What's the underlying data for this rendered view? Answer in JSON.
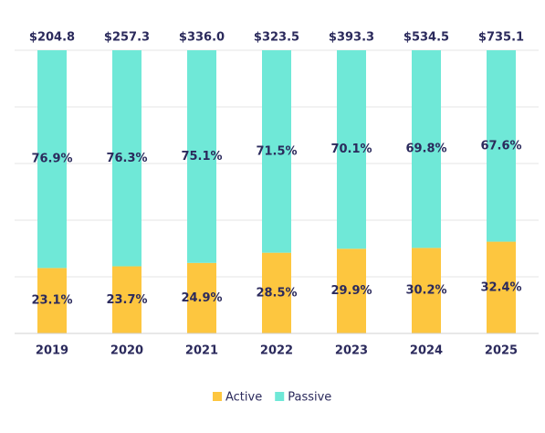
{
  "chart_data": {
    "type": "stacked_bar_percent",
    "categories": [
      "2019",
      "2020",
      "2021",
      "2022",
      "2023",
      "2024",
      "2025"
    ],
    "series": [
      {
        "name": "Active",
        "color": "#fdc63f",
        "values": [
          23.1,
          23.7,
          24.9,
          28.5,
          29.9,
          30.2,
          32.4
        ],
        "value_labels": [
          "23.1%",
          "23.7%",
          "24.9%",
          "28.5%",
          "29.9%",
          "30.2%",
          "32.4%"
        ]
      },
      {
        "name": "Passive",
        "color": "#6fe8d7",
        "values": [
          76.9,
          76.3,
          75.1,
          71.5,
          70.1,
          69.8,
          67.6
        ],
        "value_labels": [
          "76.9%",
          "76.3%",
          "75.1%",
          "71.5%",
          "70.1%",
          "69.8%",
          "67.6%"
        ]
      }
    ],
    "totals": {
      "values": [
        204.8,
        257.3,
        336.0,
        323.5,
        393.3,
        534.5,
        735.1
      ],
      "value_labels": [
        "$204.8",
        "$257.3",
        "$336.0",
        "$323.5",
        "$393.3",
        "$534.5",
        "$735.1"
      ]
    },
    "ylim": [
      0,
      100
    ],
    "yticks": [
      0,
      20,
      40,
      60,
      80,
      100
    ],
    "grid": true,
    "legend": "bottom"
  }
}
